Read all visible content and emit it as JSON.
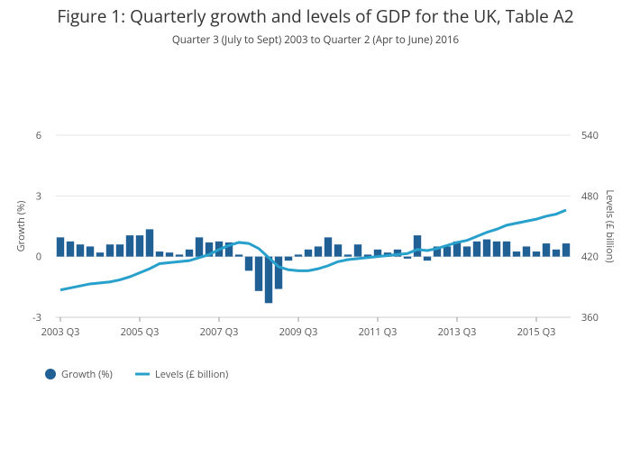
{
  "chart_data": {
    "type": "bar-line",
    "title": "Figure 1: Quarterly growth and levels of GDP for the UK, Table A2",
    "subtitle": "Quarter 3 (July to Sept) 2003 to Quarter 2 (Apr to June) 2016",
    "y_label": "Growth (%)",
    "y2_label": "Levels (£ billion)",
    "categories": [
      "2003 Q3",
      null,
      null,
      null,
      null,
      null,
      null,
      null,
      "2005 Q3",
      null,
      null,
      null,
      null,
      null,
      null,
      null,
      "2007 Q3",
      null,
      null,
      null,
      null,
      null,
      null,
      null,
      "2009 Q3",
      null,
      null,
      null,
      null,
      null,
      null,
      null,
      "2011 Q3",
      null,
      null,
      null,
      null,
      null,
      null,
      null,
      "2013 Q3",
      null,
      null,
      null,
      null,
      null,
      null,
      null,
      "2015 Q3",
      null,
      null,
      null
    ],
    "series": [
      {
        "name": "Growth (%)",
        "type": "bar",
        "color": "#206095",
        "values": [
          0.95,
          0.75,
          0.6,
          0.5,
          0.2,
          0.6,
          0.6,
          1.05,
          1.05,
          1.35,
          0.25,
          0.2,
          0.1,
          0.35,
          0.95,
          0.7,
          0.75,
          0.7,
          0.1,
          -0.7,
          -1.7,
          -2.3,
          -1.6,
          -0.2,
          0.1,
          0.35,
          0.5,
          0.95,
          0.6,
          0.1,
          0.6,
          0.1,
          0.35,
          0.2,
          0.35,
          -0.1,
          1.05,
          -0.2,
          0.5,
          0.5,
          0.75,
          0.5,
          0.75,
          0.85,
          0.75,
          0.75,
          0.25,
          0.5,
          0.25,
          0.65,
          0.35,
          0.65
        ]
      },
      {
        "name": "Levels (£ billion)",
        "type": "line",
        "axis": "y2",
        "color": "#27a0cc",
        "values": [
          387,
          389,
          391,
          393,
          394,
          395,
          397,
          400,
          404,
          408,
          413,
          414,
          415,
          416,
          419,
          422,
          427,
          431,
          434,
          433,
          428,
          419,
          410,
          407,
          406,
          406,
          408,
          411,
          415,
          417,
          418,
          419,
          420,
          421,
          422,
          423,
          427,
          426,
          428,
          431,
          434,
          436,
          440,
          444,
          447,
          451,
          453,
          455,
          457,
          460,
          462,
          466
        ]
      }
    ],
    "ylim": [
      -3,
      6
    ],
    "yticks": [
      -3,
      0,
      3,
      6
    ],
    "y2lim": [
      360,
      540
    ],
    "y2ticks": [
      360,
      420,
      480,
      540
    ],
    "grid": true,
    "legend": "bottom-left"
  }
}
